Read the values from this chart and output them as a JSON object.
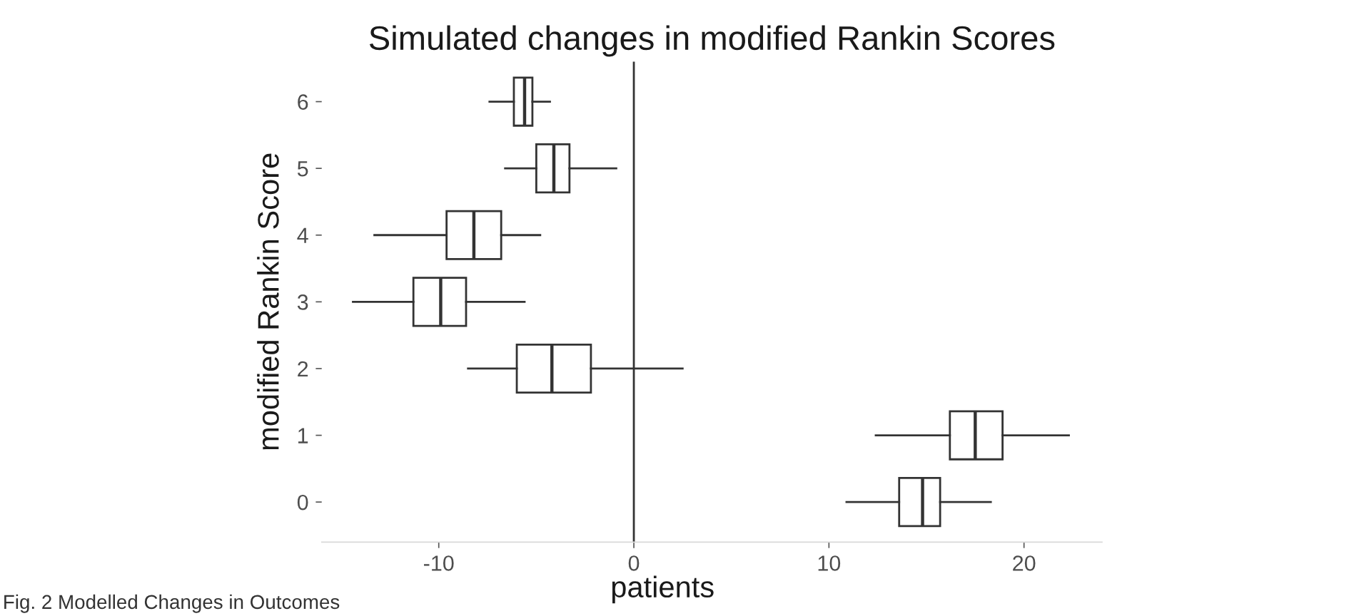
{
  "chart_data": {
    "type": "box",
    "title": "Simulated changes in modified Rankin Scores",
    "xlabel": "patients",
    "ylabel": "modified Rankin Score",
    "orientation": "horizontal",
    "categories": [
      "6",
      "5",
      "4",
      "3",
      "2",
      "1",
      "0"
    ],
    "boxes": [
      {
        "low": -7.4,
        "q1": -6.15,
        "median": -5.6,
        "q3": -5.2,
        "high": -4.3
      },
      {
        "low": -6.6,
        "q1": -5.0,
        "median": -4.1,
        "q3": -3.3,
        "high": -0.9
      },
      {
        "low": -13.3,
        "q1": -9.6,
        "median": -8.2,
        "q3": -6.8,
        "high": -4.8
      },
      {
        "low": -14.4,
        "q1": -11.3,
        "median": -9.9,
        "q3": -8.6,
        "high": -5.6
      },
      {
        "low": -8.5,
        "q1": -6.0,
        "median": -4.2,
        "q3": -2.2,
        "high": 2.5
      },
      {
        "low": 12.4,
        "q1": 16.2,
        "median": 17.5,
        "q3": 18.9,
        "high": 22.3
      },
      {
        "low": 10.9,
        "q1": 13.6,
        "median": 14.8,
        "q3": 15.7,
        "high": 18.3
      }
    ],
    "color": "#333333",
    "xlim": [
      -16,
      24
    ],
    "xticks": [
      -10,
      0,
      10,
      20
    ],
    "ref_lines": [
      {
        "axis": "x",
        "value": 0,
        "color": "#333333"
      }
    ],
    "grid": false,
    "legend": false,
    "annotations": [
      "Fig. 2 Modelled Changes in Outcomes"
    ]
  }
}
